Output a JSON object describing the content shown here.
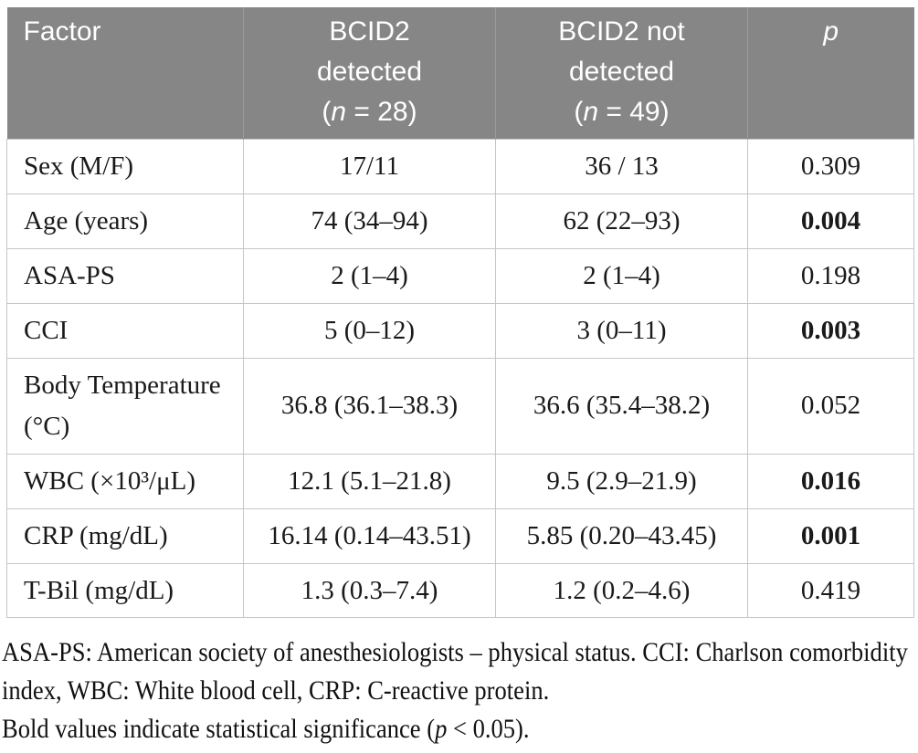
{
  "table": {
    "header": {
      "factor": "Factor",
      "detected": {
        "line1": "BCID2",
        "line2": "detected",
        "n_prefix": "(",
        "n": "n",
        "n_suffix": " = 28)"
      },
      "not_detected": {
        "line1": "BCID2 not",
        "line2": "detected",
        "n_prefix": "(",
        "n": "n",
        "n_suffix": " = 49)"
      },
      "p": "p"
    },
    "rows": [
      {
        "factor": "Sex (M/F)",
        "detected": "17/11",
        "not_detected": "36 / 13",
        "p": "0.309",
        "significant": false
      },
      {
        "factor": "Age (years)",
        "detected": "74 (34–94)",
        "not_detected": "62 (22–93)",
        "p": "0.004",
        "significant": true
      },
      {
        "factor": "ASA-PS",
        "detected": "2 (1–4)",
        "not_detected": "2 (1–4)",
        "p": "0.198",
        "significant": false
      },
      {
        "factor": "CCI",
        "detected": "5 (0–12)",
        "not_detected": "3 (0–11)",
        "p": "0.003",
        "significant": true
      },
      {
        "factor": "Body Temperature (°C)",
        "detected": "36.8 (36.1–38.3)",
        "not_detected": "36.6 (35.4–38.2)",
        "p": "0.052",
        "significant": false
      },
      {
        "factor": "WBC (×10³/μL)",
        "detected": "12.1 (5.1–21.8)",
        "not_detected": "9.5 (2.9–21.9)",
        "p": "0.016",
        "significant": true
      },
      {
        "factor": "CRP (mg/dL)",
        "detected": "16.14 (0.14–43.51)",
        "not_detected": "5.85 (0.20–43.45)",
        "p": "0.001",
        "significant": true
      },
      {
        "factor": "T-Bil (mg/dL)",
        "detected": "1.3 (0.3–7.4)",
        "not_detected": "1.2 (0.2–4.6)",
        "p": "0.419",
        "significant": false
      }
    ]
  },
  "footnote": {
    "abbreviations": "ASA-PS: American society of anesthesiologists – physical status. CCI: Charlson comorbidity index, WBC: White blood cell, CRP: C-reactive protein.",
    "significance_prefix": "Bold values indicate statistical significance (",
    "significance_p": "p",
    "significance_suffix": " < 0.05)."
  },
  "colors": {
    "header_bg": "#868686",
    "header_text": "#ffffff",
    "header_divider": "#9b9b9b",
    "body_border": "#c6c6c6",
    "body_text": "#1a1a1a"
  }
}
